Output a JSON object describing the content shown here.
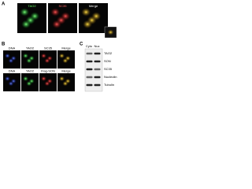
{
  "panel_a": {
    "label": "A",
    "columns": [
      "TAO2",
      "SC35",
      "Merge"
    ]
  },
  "panel_b": {
    "label": "B",
    "rows": [
      {
        "columns": [
          "DNA",
          "TAO2",
          "SC35",
          "Merge"
        ]
      },
      {
        "columns": [
          "DNA",
          "TAO2",
          "Flag-SON",
          "Merge"
        ]
      }
    ]
  },
  "panel_c": {
    "label": "C",
    "lanes": [
      "Cyto",
      "Nuc"
    ],
    "rows": [
      "TAO2",
      "SON",
      "SC35",
      "Nucleolin",
      "Tubulin"
    ]
  }
}
